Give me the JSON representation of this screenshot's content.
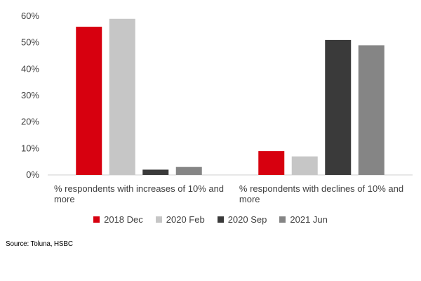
{
  "chart_data": {
    "type": "bar",
    "categories": [
      [
        "% respondents with increases of 10% and",
        "more"
      ],
      [
        "% respondents with declines of 10% and",
        "more"
      ]
    ],
    "series": [
      {
        "name": "2018 Dec",
        "color": "#d7000f",
        "values": [
          56,
          9
        ]
      },
      {
        "name": "2020 Feb",
        "color": "#c6c6c6",
        "values": [
          59,
          7
        ]
      },
      {
        "name": "2020 Sep",
        "color": "#3a3a3a",
        "values": [
          2,
          51
        ]
      },
      {
        "name": "2021 Jun",
        "color": "#858585",
        "values": [
          3,
          49
        ]
      }
    ],
    "ylim": [
      0,
      60
    ],
    "yticks": [
      0,
      10,
      20,
      30,
      40,
      50,
      60
    ],
    "ytick_labels": [
      "0%",
      "10%",
      "20%",
      "30%",
      "40%",
      "50%",
      "60%"
    ],
    "legend_position": "bottom",
    "grid": false
  },
  "source_note": "Source: Toluna, HSBC"
}
